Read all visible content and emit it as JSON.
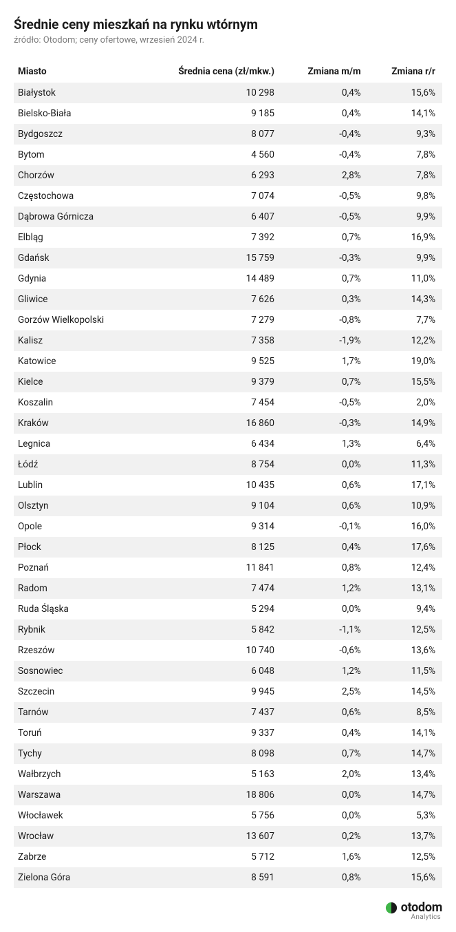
{
  "header": {
    "title": "Średnie ceny mieszkań na rynku wtórnym",
    "subtitle": "źródło: Otodom; ceny ofertowe, wrzesień 2024 r."
  },
  "table": {
    "columns": [
      "Miasto",
      "Średnia cena (zł/mkw.)",
      "Zmiana m/m",
      "Zmiana r/r"
    ],
    "column_align": [
      "left",
      "right",
      "right",
      "right"
    ],
    "row_stripe_odd": "#f1f1f1",
    "row_stripe_even": "#ffffff",
    "header_bg": "#ffffff",
    "font_size": 13.5,
    "text_color": "#1a1a1a",
    "rows": [
      [
        "Białystok",
        "10 298",
        "0,4%",
        "15,6%"
      ],
      [
        "Bielsko-Biała",
        "9 185",
        "0,4%",
        "14,1%"
      ],
      [
        "Bydgoszcz",
        "8 077",
        "-0,4%",
        "9,3%"
      ],
      [
        "Bytom",
        "4 560",
        "-0,4%",
        "7,8%"
      ],
      [
        "Chorzów",
        "6 293",
        "2,8%",
        "7,8%"
      ],
      [
        "Częstochowa",
        "7 074",
        "-0,5%",
        "9,8%"
      ],
      [
        "Dąbrowa Górnicza",
        "6 407",
        "-0,5%",
        "9,9%"
      ],
      [
        "Elbląg",
        "7 392",
        "0,7%",
        "16,9%"
      ],
      [
        "Gdańsk",
        "15 759",
        "-0,3%",
        "9,9%"
      ],
      [
        "Gdynia",
        "14 489",
        "0,7%",
        "11,0%"
      ],
      [
        "Gliwice",
        "7 626",
        "0,3%",
        "14,3%"
      ],
      [
        "Gorzów Wielkopolski",
        "7 279",
        "-0,8%",
        "7,7%"
      ],
      [
        "Kalisz",
        "7 358",
        "-1,9%",
        "12,2%"
      ],
      [
        "Katowice",
        "9 525",
        "1,7%",
        "19,0%"
      ],
      [
        "Kielce",
        "9 379",
        "0,7%",
        "15,5%"
      ],
      [
        "Koszalin",
        "7 454",
        "-0,5%",
        "2,0%"
      ],
      [
        "Kraków",
        "16 860",
        "-0,3%",
        "14,9%"
      ],
      [
        "Legnica",
        "6 434",
        "1,3%",
        "6,4%"
      ],
      [
        "Łódź",
        "8 754",
        "0,0%",
        "11,3%"
      ],
      [
        "Lublin",
        "10 435",
        "0,6%",
        "17,1%"
      ],
      [
        "Olsztyn",
        "9 104",
        "0,6%",
        "10,9%"
      ],
      [
        "Opole",
        "9 314",
        "-0,1%",
        "16,0%"
      ],
      [
        "Płock",
        "8 125",
        "0,4%",
        "17,6%"
      ],
      [
        "Poznań",
        "11 841",
        "0,8%",
        "12,4%"
      ],
      [
        "Radom",
        "7 474",
        "1,2%",
        "13,1%"
      ],
      [
        "Ruda Śląska",
        "5 294",
        "0,0%",
        "9,4%"
      ],
      [
        "Rybnik",
        "5 842",
        "-1,1%",
        "12,5%"
      ],
      [
        "Rzeszów",
        "10 740",
        "-0,6%",
        "13,6%"
      ],
      [
        "Sosnowiec",
        "6 048",
        "1,2%",
        "11,5%"
      ],
      [
        "Szczecin",
        "9 945",
        "2,5%",
        "14,5%"
      ],
      [
        "Tarnów",
        "7 437",
        "0,6%",
        "8,5%"
      ],
      [
        "Toruń",
        "9 337",
        "0,4%",
        "14,1%"
      ],
      [
        "Tychy",
        "8 098",
        "0,7%",
        "14,7%"
      ],
      [
        "Wałbrzych",
        "5 163",
        "2,0%",
        "13,4%"
      ],
      [
        "Warszawa",
        "18 806",
        "0,0%",
        "14,7%"
      ],
      [
        "Włocławek",
        "5 756",
        "0,0%",
        "5,3%"
      ],
      [
        "Wrocław",
        "13 607",
        "0,2%",
        "13,7%"
      ],
      [
        "Zabrze",
        "5 712",
        "1,6%",
        "12,5%"
      ],
      [
        "Zielona Góra",
        "8 591",
        "0,8%",
        "15,6%"
      ]
    ]
  },
  "footer": {
    "brand": "otodom",
    "brand_sub": "Analytics",
    "icon_colors": {
      "left": "#3fb548",
      "right": "#1a1a1a"
    }
  }
}
